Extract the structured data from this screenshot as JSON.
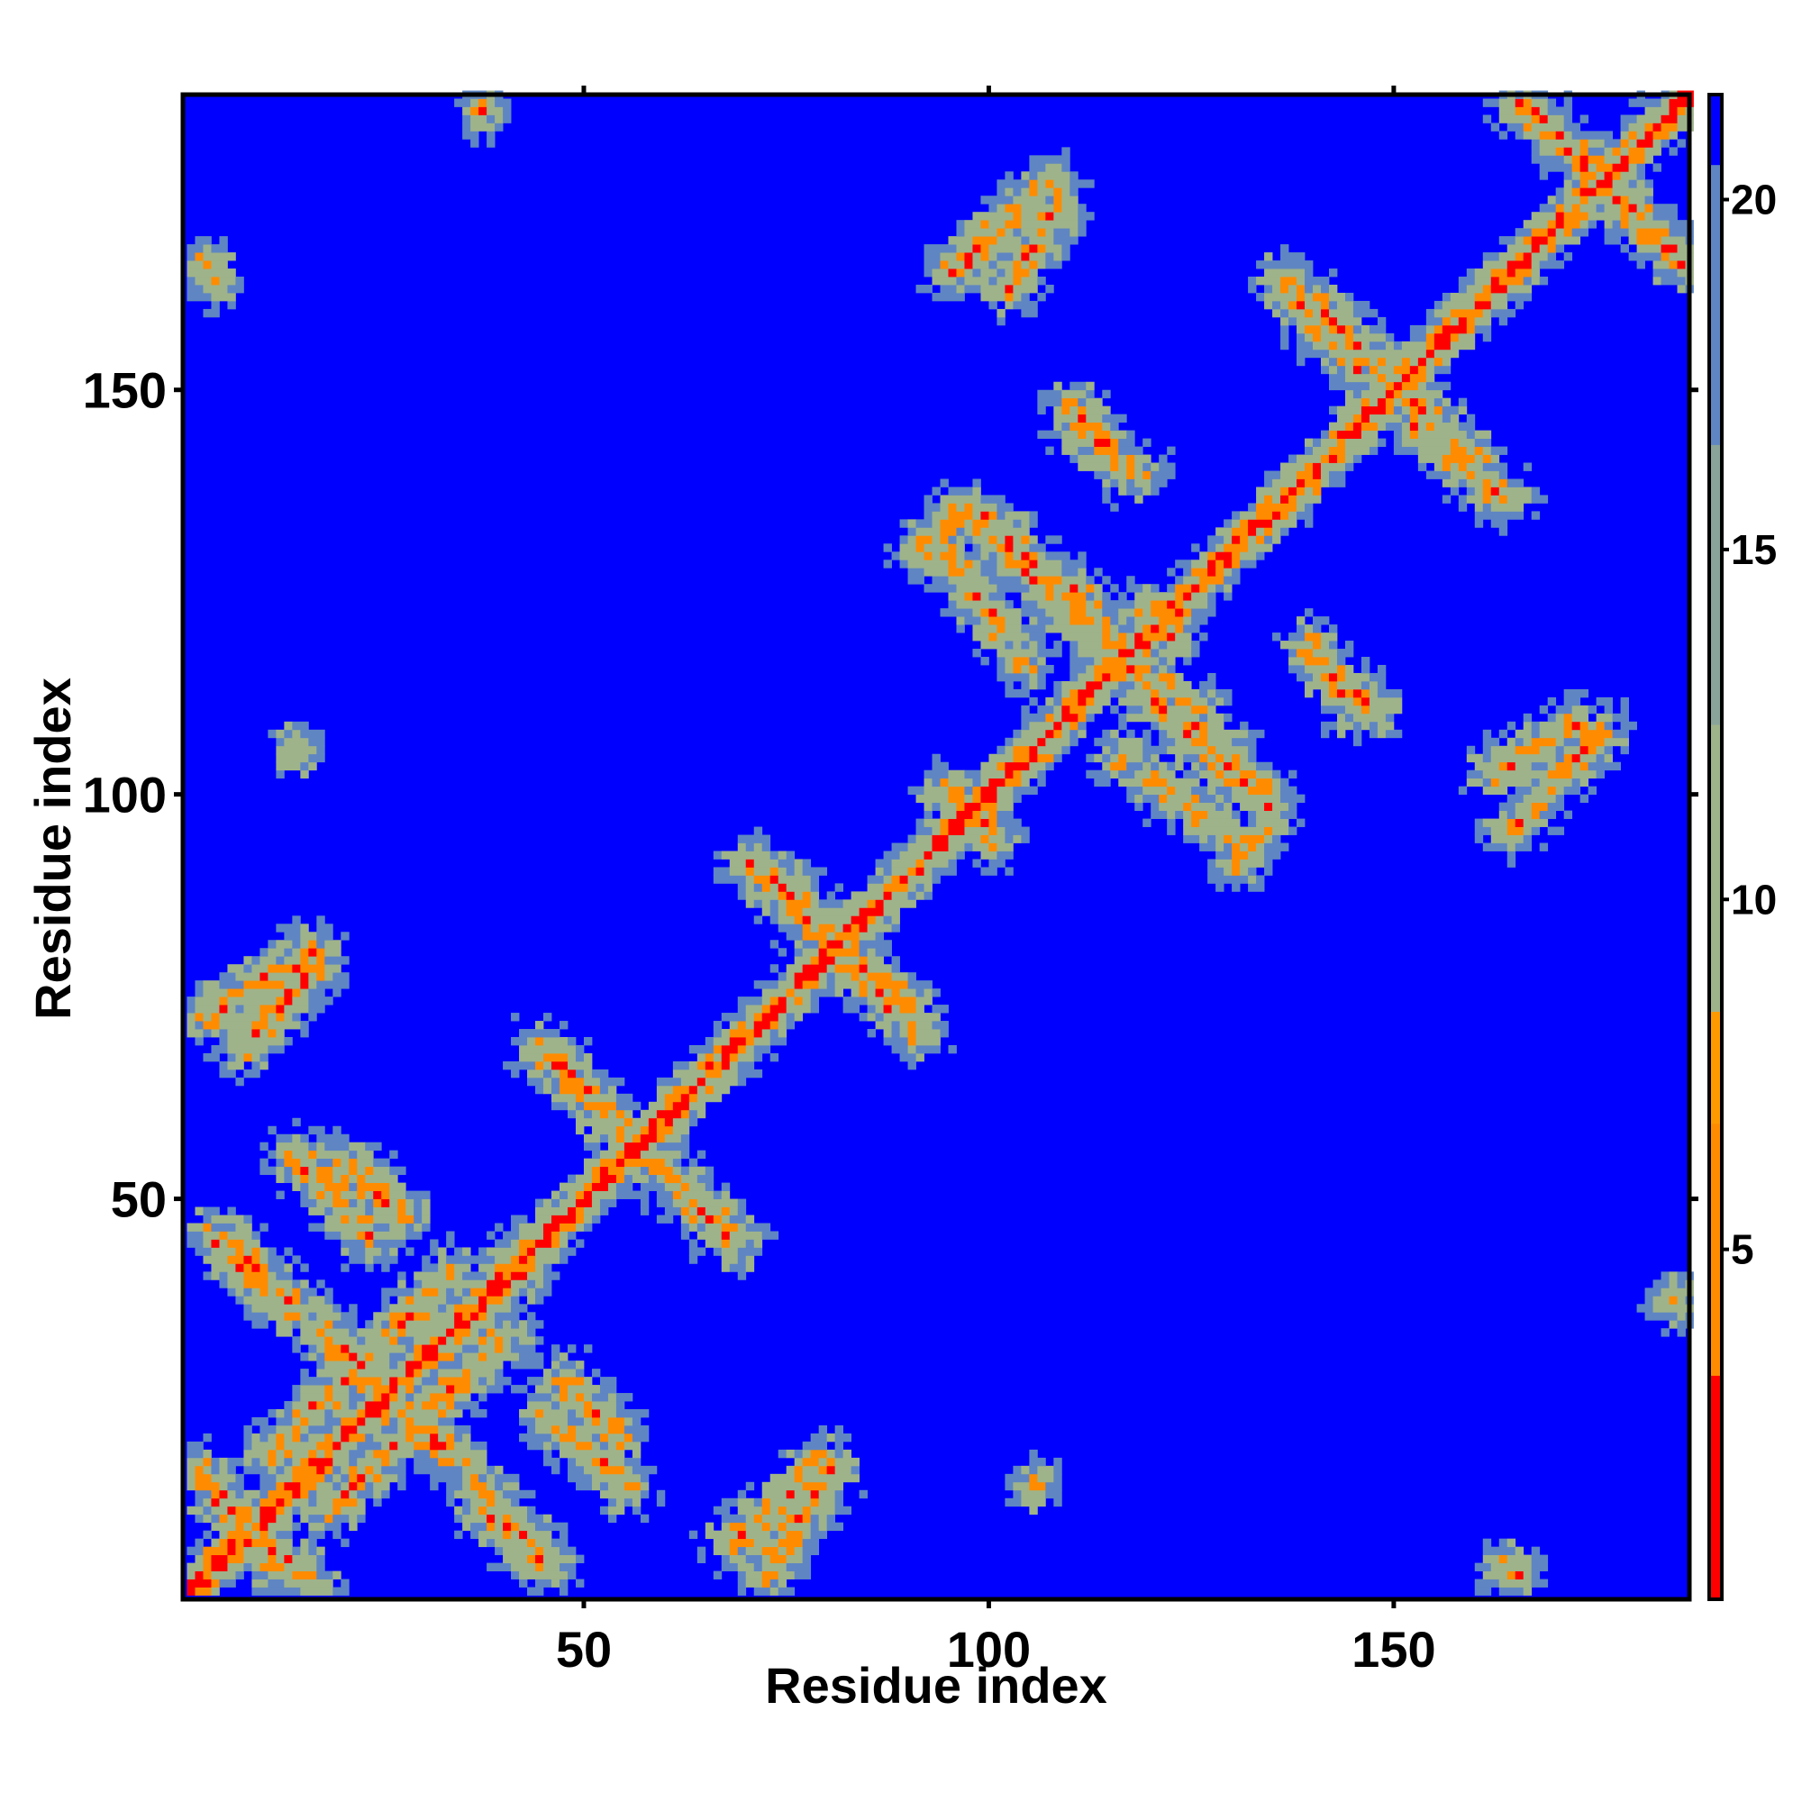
{
  "chart_data": {
    "type": "heatmap",
    "title": "",
    "xlabel": "Residue index",
    "ylabel": "Residue index",
    "xlim": [
      1,
      186
    ],
    "ylim": [
      1,
      186
    ],
    "xticks": [
      50,
      100,
      150
    ],
    "yticks": [
      50,
      100,
      150
    ],
    "grid": false,
    "colorbar": {
      "range": [
        0,
        21.5
      ],
      "ticks": [
        5,
        10,
        15,
        20
      ],
      "position": "right",
      "colors": {
        "close": "#ff0000",
        "near": "#ff8c00",
        "mid": "#9fb38a",
        "far": "#5f86c2",
        "background": "#0000ff"
      }
    },
    "matrix_description": "Symmetric residue-residue distance map; diagonal distance ~0, background saturated at >20",
    "contact_segments": [
      {
        "from": [
          4,
          12
        ],
        "to": [
          16,
          2
        ],
        "distance": 6
      },
      {
        "from": [
          6,
          44
        ],
        "to": [
          14,
          36
        ],
        "distance": 6
      },
      {
        "from": [
          20,
          54
        ],
        "to": [
          27,
          47
        ],
        "distance": 6
      },
      {
        "from": [
          3,
          72
        ],
        "to": [
          16,
          80
        ],
        "distance": 6
      },
      {
        "from": [
          19,
          31
        ],
        "to": [
          34,
          17
        ],
        "distance": 6
      },
      {
        "from": [
          37,
          11
        ],
        "to": [
          45,
          4
        ],
        "distance": 6
      },
      {
        "from": [
          45,
          23
        ],
        "to": [
          55,
          14
        ],
        "distance": 6
      },
      {
        "from": [
          45,
          68
        ],
        "to": [
          54,
          58
        ],
        "distance": 6
      },
      {
        "from": [
          58,
          54
        ],
        "to": [
          68,
          44
        ],
        "distance": 6
      },
      {
        "from": [
          68,
          7
        ],
        "to": [
          79,
          17
        ],
        "distance": 6
      },
      {
        "from": [
          72,
          90
        ],
        "to": [
          82,
          80
        ],
        "distance": 6
      },
      {
        "from": [
          81,
          80
        ],
        "to": [
          91,
          70
        ],
        "distance": 6
      },
      {
        "from": [
          94,
          100
        ],
        "to": [
          100,
          95
        ],
        "distance": 6
      },
      {
        "from": [
          94,
          130
        ],
        "to": [
          101,
          120
        ],
        "distance": 6
      },
      {
        "from": [
          95,
          164
        ],
        "to": [
          107,
          175
        ],
        "distance": 6
      },
      {
        "from": [
          99,
          134
        ],
        "to": [
          109,
          124
        ],
        "distance": 6
      },
      {
        "from": [
          110,
          125
        ],
        "to": [
          117,
          115
        ],
        "distance": 6
      },
      {
        "from": [
          110,
          145
        ],
        "to": [
          118,
          139
        ],
        "distance": 6
      },
      {
        "from": [
          119,
          112
        ],
        "to": [
          134,
          98
        ],
        "distance": 6
      },
      {
        "from": [
          130,
          91
        ],
        "to": [
          134,
          96
        ],
        "distance": 6
      },
      {
        "from": [
          136,
          163
        ],
        "to": [
          145,
          152
        ],
        "distance": 6
      },
      {
        "from": [
          140,
          116
        ],
        "to": [
          147,
          110
        ],
        "distance": 6
      },
      {
        "from": [
          151,
          149
        ],
        "to": [
          160,
          140
        ],
        "distance": 6
      },
      {
        "from": [
          162,
          102
        ],
        "to": [
          172,
          108
        ],
        "distance": 6
      },
      {
        "from": [
          166,
          185
        ],
        "to": [
          175,
          175
        ],
        "distance": 6
      },
      {
        "from": [
          176,
          175
        ],
        "to": [
          185,
          165
        ],
        "distance": 6
      },
      {
        "from": [
          18,
          11
        ],
        "to": [
          40,
          33
        ],
        "distance": 6
      }
    ],
    "isolated_contacts": [
      {
        "x": 3,
        "y": 165,
        "distance": 5
      },
      {
        "x": 37,
        "y": 184,
        "distance": 5
      },
      {
        "x": 14,
        "y": 105,
        "distance": 5
      },
      {
        "x": 184,
        "y": 37,
        "distance": 5
      },
      {
        "x": 105,
        "y": 14,
        "distance": 5
      },
      {
        "x": 163,
        "y": 4,
        "distance": 5
      },
      {
        "x": 116,
        "y": 104,
        "distance": 5
      },
      {
        "x": 119,
        "y": 122,
        "distance": 5
      },
      {
        "x": 75,
        "y": 88,
        "distance": 5
      },
      {
        "x": 42,
        "y": 40,
        "distance": 5
      }
    ],
    "domain_blocks": [
      {
        "x_range": [
          1,
          95
        ],
        "y_range": [
          1,
          95
        ],
        "density": "dense"
      },
      {
        "x_range": [
          95,
          186
        ],
        "y_range": [
          95,
          186
        ],
        "density": "dense"
      },
      {
        "x_range": [
          1,
          95
        ],
        "y_range": [
          95,
          186
        ],
        "density": "sparse"
      },
      {
        "x_range": [
          95,
          186
        ],
        "y_range": [
          1,
          95
        ],
        "density": "sparse"
      }
    ]
  }
}
